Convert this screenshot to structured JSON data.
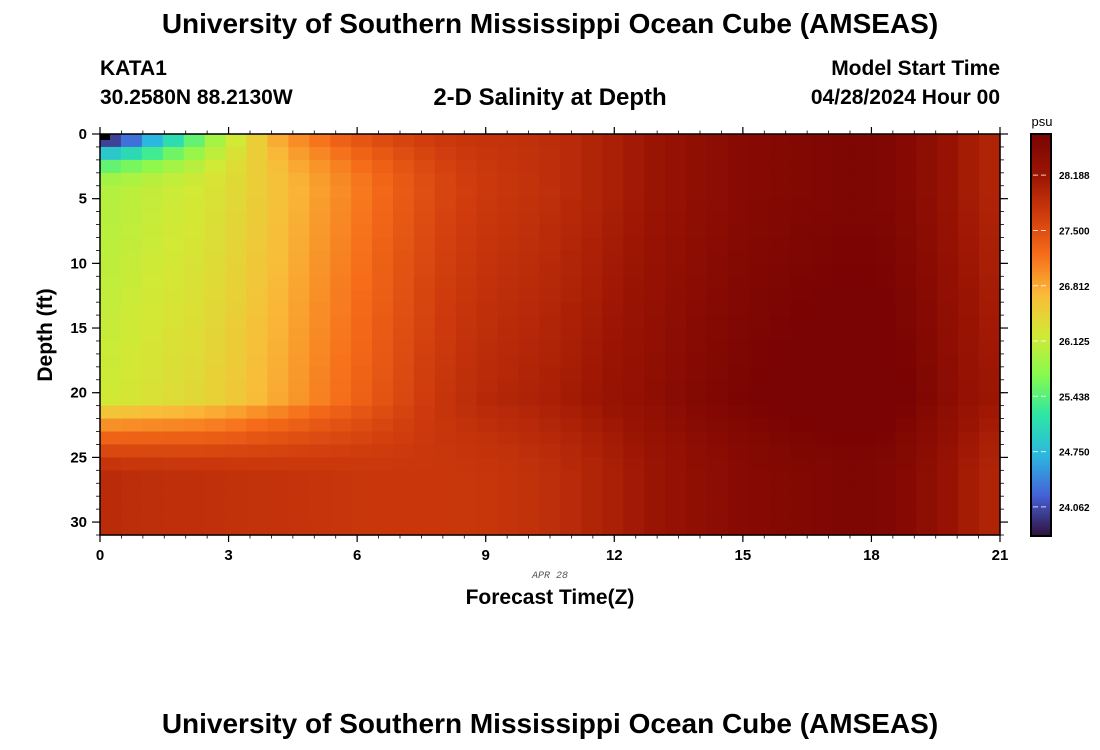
{
  "header": {
    "title": "University of Southern Mississippi Ocean Cube (AMSEAS)",
    "station": "KATA1",
    "coordinates": "30.2580N  88.2130W",
    "subtitle": "2-D Salinity at Depth",
    "start_label": "Model Start Time",
    "start_value": "04/28/2024 Hour 00"
  },
  "footer": {
    "title": "University of Southern Mississippi Ocean Cube (AMSEAS)"
  },
  "chart_data": {
    "type": "heatmap",
    "title": "2-D Salinity at Depth",
    "xlabel": "Forecast Time(Z)",
    "ylabel": "Depth (ft)",
    "x_ticks": [
      "0",
      "3",
      "6",
      "9",
      "12",
      "15",
      "18",
      "21"
    ],
    "y_ticks": [
      "0",
      "5",
      "10",
      "15",
      "20",
      "25",
      "30"
    ],
    "xlim": [
      0,
      21
    ],
    "ylim": [
      0,
      31
    ],
    "date_annotation": "APR 28",
    "colorbar": {
      "unit": "psu",
      "range": [
        23.7,
        28.7
      ],
      "tick_labels": [
        "28.188",
        "27.500",
        "26.812",
        "26.125",
        "25.438",
        "24.750",
        "24.062"
      ],
      "tick_values": [
        28.188,
        27.5,
        26.812,
        26.125,
        25.438,
        24.75,
        24.062
      ],
      "colors": [
        "#30123b",
        "#4560d6",
        "#2cb7e0",
        "#2de6a5",
        "#87fa4e",
        "#d2e935",
        "#fabb39",
        "#f66c19",
        "#cf3b0d",
        "#9a1403",
        "#7a0403"
      ]
    },
    "x": [
      0,
      0.5,
      1,
      1.5,
      2,
      2.5,
      3,
      3.5,
      4,
      4.5,
      5,
      5.5,
      6,
      6.5,
      7,
      7.5,
      8,
      8.5,
      9,
      9.5,
      10,
      10.5,
      11,
      11.5,
      12,
      12.5,
      13,
      13.5,
      14,
      14.5,
      15,
      15.5,
      16,
      16.5,
      17,
      17.5,
      18,
      18.5,
      19,
      19.5,
      20,
      20.5,
      21
    ],
    "depths": [
      0,
      1,
      2,
      3,
      4,
      5,
      6,
      7,
      8,
      9,
      10,
      11,
      12,
      13,
      14,
      15,
      16,
      17,
      18,
      19,
      20,
      21,
      22,
      23,
      24,
      25,
      26,
      27,
      28,
      29,
      30
    ],
    "profiles": {
      "description": "Salinity (psu) vs forecast hour at three reference depths; cells interpolated between these",
      "surface_0ft": [
        24.0,
        24.3,
        24.7,
        25.1,
        25.5,
        25.9,
        26.2,
        26.5,
        26.8,
        27.0,
        27.15,
        27.3,
        27.42,
        27.52,
        27.6,
        27.68,
        27.74,
        27.78,
        27.8,
        27.82,
        27.84,
        27.88,
        27.92,
        27.98,
        28.05,
        28.12,
        28.2,
        28.28,
        28.36,
        28.42,
        28.48,
        28.52,
        28.55,
        28.58,
        28.6,
        28.62,
        28.62,
        28.6,
        28.52,
        28.4,
        28.25,
        28.1,
        28.0
      ],
      "mid_10ft": [
        26.0,
        26.05,
        26.1,
        26.15,
        26.2,
        26.28,
        26.38,
        26.5,
        26.62,
        26.75,
        26.88,
        27.0,
        27.12,
        27.25,
        27.38,
        27.5,
        27.6,
        27.68,
        27.74,
        27.78,
        27.82,
        27.86,
        27.92,
        27.98,
        28.05,
        28.12,
        28.2,
        28.28,
        28.36,
        28.42,
        28.48,
        28.52,
        28.55,
        28.58,
        28.6,
        28.62,
        28.62,
        28.6,
        28.52,
        28.4,
        28.25,
        28.1,
        28.0
      ],
      "bottom_30ft": [
        27.9,
        27.88,
        27.87,
        27.86,
        27.85,
        27.84,
        27.83,
        27.82,
        27.81,
        27.8,
        27.79,
        27.78,
        27.77,
        27.76,
        27.76,
        27.76,
        27.76,
        27.77,
        27.78,
        27.8,
        27.83,
        27.87,
        27.92,
        27.98,
        28.05,
        28.12,
        28.2,
        28.28,
        28.36,
        28.42,
        28.48,
        28.52,
        28.55,
        28.58,
        28.6,
        28.62,
        28.62,
        28.6,
        28.52,
        28.4,
        28.25,
        28.1,
        28.0
      ]
    }
  }
}
